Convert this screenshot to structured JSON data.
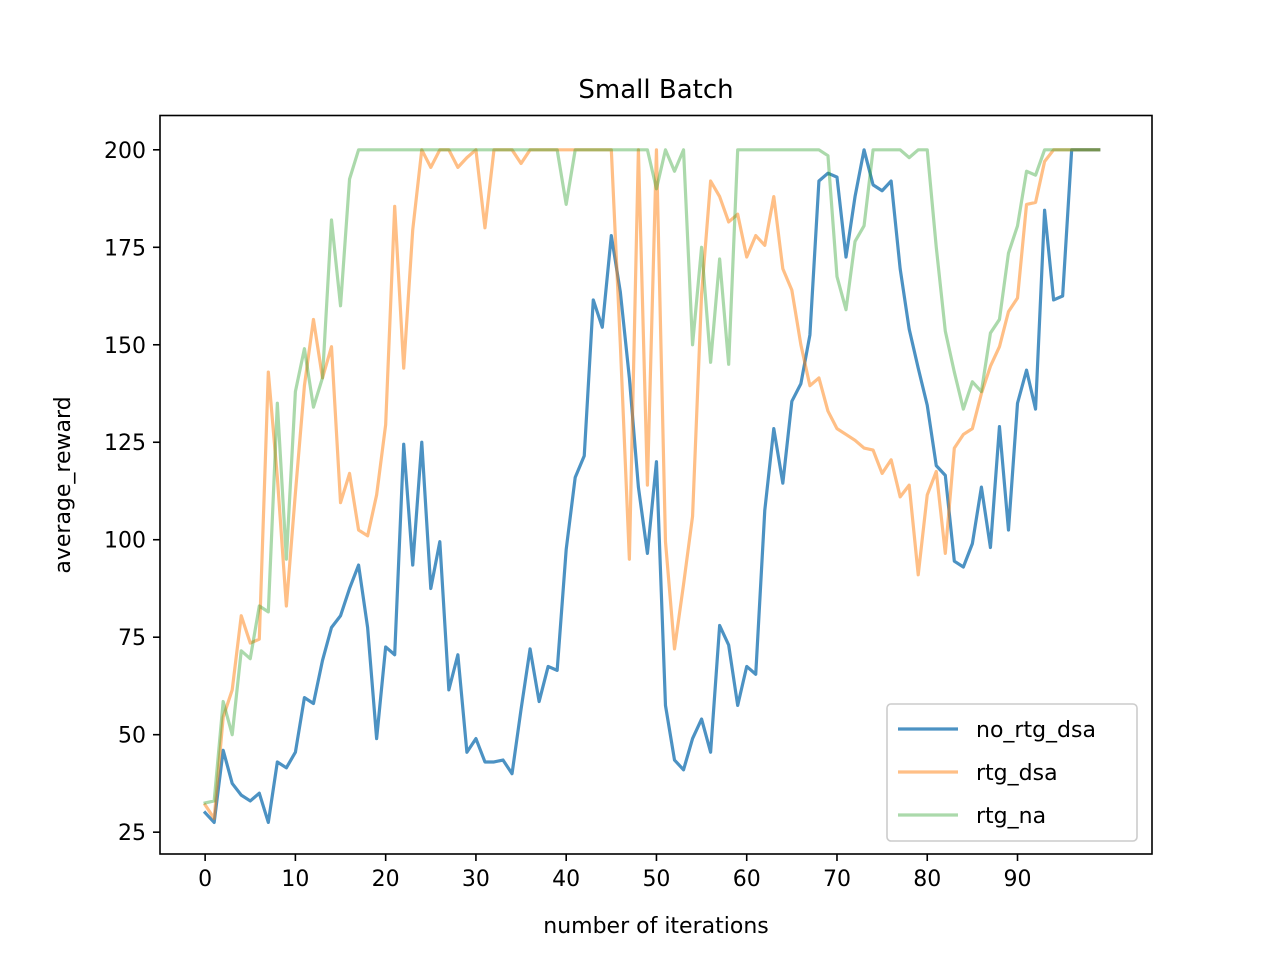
{
  "chart_data": {
    "type": "line",
    "title": "Small Batch",
    "xlabel": "number of iterations",
    "ylabel": "average_reward",
    "xlim": [
      -5,
      104.9
    ],
    "ylim": [
      19.4,
      208.8
    ],
    "xticks": [
      0,
      10,
      20,
      30,
      40,
      50,
      60,
      70,
      80,
      90
    ],
    "yticks": [
      25,
      50,
      75,
      100,
      125,
      150,
      175,
      200
    ],
    "legend_position": "lower right",
    "grid": false,
    "series": [
      {
        "name": "no_rtg_dsa",
        "color": "#1f77b4",
        "opacity": 0.8,
        "values": [
          30,
          27.5,
          46,
          37.5,
          34.5,
          33,
          35,
          27.5,
          43,
          41.5,
          45.5,
          59.5,
          58,
          69,
          77.5,
          80.5,
          87.5,
          93.5,
          77.5,
          49,
          72.5,
          70.5,
          124.5,
          93.5,
          125,
          87.5,
          99.5,
          61.5,
          70.5,
          45.5,
          49,
          43,
          43,
          43.5,
          40,
          56.5,
          72,
          58.5,
          67.5,
          66.5,
          97.5,
          116,
          121.5,
          161.5,
          154.5,
          178,
          163.5,
          141.5,
          113.5,
          96.5,
          120,
          57.5,
          43.5,
          41,
          49,
          54,
          45.5,
          78,
          73,
          57.5,
          67.5,
          65.5,
          107.5,
          128.5,
          114.5,
          135.5,
          140,
          152.5,
          192,
          194,
          193,
          172.5,
          188,
          200,
          191,
          189.5,
          192,
          169.5,
          154,
          144,
          134.5,
          119,
          116.5,
          94.5,
          93,
          99,
          113.5,
          98,
          129,
          102.5,
          135,
          143.5,
          133.5,
          184.5,
          161.5,
          162.5,
          200,
          200,
          200,
          200
        ]
      },
      {
        "name": "rtg_dsa",
        "color": "#ff7f0e",
        "opacity": 0.5,
        "values": [
          32,
          28.5,
          54.5,
          61.5,
          80.5,
          73.5,
          74.5,
          143,
          116,
          83,
          112,
          139.5,
          156.5,
          141.5,
          149.5,
          109.5,
          117,
          102.5,
          101,
          111.5,
          129.5,
          185.5,
          144,
          179.5,
          200,
          195.5,
          200,
          200,
          195.5,
          198,
          200,
          180,
          200,
          200,
          200,
          196.5,
          200,
          200,
          200,
          200,
          200,
          200,
          200,
          200,
          200,
          200,
          150,
          95,
          200,
          114,
          200,
          99.5,
          72,
          88.5,
          106,
          163,
          192,
          188,
          181.5,
          183.5,
          172.5,
          178,
          175.5,
          188,
          169.5,
          164,
          150,
          139.5,
          141.5,
          133,
          128.5,
          127,
          125.5,
          123.5,
          123,
          117,
          120.5,
          111,
          114,
          91,
          111.5,
          117.5,
          96.5,
          123.5,
          127,
          128.5,
          137.5,
          144.5,
          149.5,
          158.5,
          162,
          186,
          186.5,
          197,
          200,
          200,
          200,
          200,
          200,
          200
        ]
      },
      {
        "name": "rtg_na",
        "color": "#2ca02c",
        "opacity": 0.4,
        "values": [
          32.5,
          33,
          58.5,
          50,
          71.5,
          69.5,
          83,
          81.5,
          135,
          95,
          138,
          149,
          134,
          141.5,
          182,
          160,
          192.5,
          200,
          200,
          200,
          200,
          200,
          200,
          200,
          200,
          200,
          200,
          200,
          200,
          200,
          200,
          200,
          200,
          200,
          200,
          200,
          200,
          200,
          200,
          200,
          186,
          200,
          200,
          200,
          200,
          200,
          200,
          200,
          200,
          200,
          190,
          200,
          194.5,
          200,
          150,
          175,
          145.5,
          172,
          145,
          200,
          200,
          200,
          200,
          200,
          200,
          200,
          200,
          200,
          200,
          198.5,
          167.5,
          159,
          176.5,
          180.5,
          200,
          200,
          200,
          200,
          198,
          200,
          200,
          175,
          153.5,
          143,
          133.5,
          140.5,
          138,
          153,
          156.5,
          173.5,
          180.5,
          194.5,
          193.5,
          200,
          200,
          200,
          200,
          200,
          200,
          200
        ]
      }
    ]
  }
}
